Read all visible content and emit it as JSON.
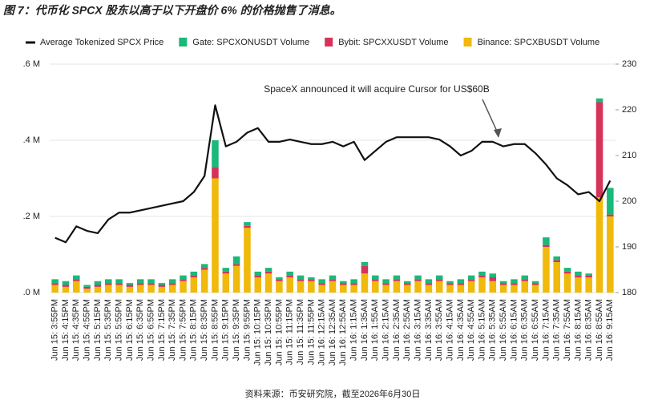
{
  "chart_data": {
    "type": "bar-line",
    "title": "图 7：代币化 SPCX 股东以高于以下开盘价 6% 的价格抛售了消息。",
    "source": "资料来源：币安研究院，截至2026年6月30日",
    "annotation": "SpaceX announced it will acquire Cursor for US$60B",
    "categories": [
      "Jun 15: 3:55PM",
      "Jun 15: 4:15PM",
      "Jun 15: 4:35PM",
      "Jun 15: 4:55PM",
      "Jun 15: 5:15PM",
      "Jun 15: 5:35PM",
      "Jun 15: 5:55PM",
      "Jun 15: 6:15PM",
      "Jun 15: 6:35PM",
      "Jun 15: 6:55PM",
      "Jun 15: 7:15PM",
      "Jun 15: 7:35PM",
      "Jun 15: 7:55PM",
      "Jun 15: 8:15PM",
      "Jun 15: 8:35PM",
      "Jun 15: 8:55PM",
      "Jun 15: 9:15PM",
      "Jun 15: 9:35PM",
      "Jun 15: 9:55PM",
      "Jun 15: 10:15PM",
      "Jun 15: 10:35PM",
      "Jun 15: 10:55PM",
      "Jun 15: 11:15PM",
      "Jun 15: 11:35PM",
      "Jun 15: 11:55PM",
      "Jun 16: 12:15AM",
      "Jun 16: 12:35AM",
      "Jun 16: 12:55AM",
      "Jun 16: 1:15AM",
      "Jun 16: 1:35AM",
      "Jun 16: 1:55AM",
      "Jun 16: 2:15AM",
      "Jun 16: 2:35AM",
      "Jun 16: 2:55AM",
      "Jun 16: 3:15AM",
      "Jun 16: 3:35AM",
      "Jun 16: 3:55AM",
      "Jun 16: 4:15AM",
      "Jun 16: 4:35AM",
      "Jun 16: 4:55AM",
      "Jun 16: 5:15AM",
      "Jun 16: 5:35AM",
      "Jun 16: 5:55AM",
      "Jun 16: 6:15AM",
      "Jun 16: 6:35AM",
      "Jun 16: 6:55AM",
      "Jun 16: 7:15AM",
      "Jun 16: 7:35AM",
      "Jun 16: 7:55AM",
      "Jun 16: 8:15AM",
      "Jun 16: 8:35AM",
      "Jun 16: 8:55AM",
      "Jun 16: 9:15AM"
    ],
    "series": [
      {
        "name": "Average Tokenized SPCX Price",
        "color": "#111111",
        "type": "line",
        "axis": "y2",
        "values": [
          192,
          191,
          194.5,
          193.5,
          193,
          196,
          197.5,
          197.5,
          198,
          198.5,
          199,
          199.5,
          200,
          202,
          205.5,
          221,
          212,
          213,
          215,
          216,
          213,
          213,
          213.5,
          213,
          212.5,
          212.5,
          213,
          212,
          213,
          209,
          211,
          213,
          214,
          214,
          214,
          214,
          213.5,
          212,
          210,
          211,
          213,
          213,
          212,
          212.5,
          212.5,
          210.5,
          208,
          205,
          203.5,
          201.5,
          202,
          200,
          204.5
        ]
      },
      {
        "name": "Gate: SPCXONUSDT Volume",
        "color": "#1bb87a",
        "type": "bar",
        "values": [
          0.01,
          0.01,
          0.01,
          0.005,
          0.01,
          0.01,
          0.01,
          0.005,
          0.01,
          0.01,
          0.005,
          0.01,
          0.01,
          0.01,
          0.01,
          0.07,
          0.01,
          0.02,
          0.01,
          0.01,
          0.01,
          0.005,
          0.01,
          0.01,
          0.005,
          0.01,
          0.01,
          0.005,
          0.01,
          0.01,
          0.01,
          0.01,
          0.01,
          0.005,
          0.01,
          0.01,
          0.01,
          0.005,
          0.01,
          0.01,
          0.01,
          0.01,
          0.005,
          0.01,
          0.01,
          0.005,
          0.02,
          0.01,
          0.01,
          0.01,
          0.005,
          0.01,
          0.07
        ]
      },
      {
        "name": "Bybit: SPCXXUSDT Volume",
        "color": "#d6335a",
        "type": "bar",
        "values": [
          0.005,
          0.005,
          0.005,
          0.005,
          0.005,
          0.005,
          0.005,
          0.005,
          0.005,
          0.005,
          0.005,
          0.005,
          0.005,
          0.005,
          0.005,
          0.03,
          0.005,
          0.005,
          0.005,
          0.005,
          0.005,
          0.005,
          0.005,
          0.005,
          0.005,
          0.005,
          0.005,
          0.005,
          0.005,
          0.02,
          0.005,
          0.005,
          0.005,
          0.005,
          0.005,
          0.005,
          0.005,
          0.005,
          0.005,
          0.005,
          0.005,
          0.01,
          0.005,
          0.005,
          0.005,
          0.005,
          0.005,
          0.005,
          0.005,
          0.005,
          0.005,
          0.25,
          0.005
        ]
      },
      {
        "name": "Binance: SPCXBUSDT Volume",
        "color": "#f0b90b",
        "type": "bar",
        "values": [
          0.02,
          0.015,
          0.03,
          0.01,
          0.015,
          0.02,
          0.02,
          0.015,
          0.02,
          0.02,
          0.015,
          0.02,
          0.03,
          0.04,
          0.06,
          0.3,
          0.05,
          0.07,
          0.17,
          0.04,
          0.05,
          0.03,
          0.04,
          0.03,
          0.03,
          0.02,
          0.03,
          0.02,
          0.02,
          0.05,
          0.03,
          0.02,
          0.03,
          0.02,
          0.03,
          0.02,
          0.03,
          0.02,
          0.02,
          0.03,
          0.04,
          0.03,
          0.02,
          0.02,
          0.03,
          0.02,
          0.12,
          0.08,
          0.05,
          0.04,
          0.04,
          0.25,
          0.2
        ]
      }
    ],
    "ylim": [
      0,
      0.6
    ],
    "yticks": [
      {
        "value": 0,
        "label": ".0 M"
      },
      {
        "value": 0.2,
        "label": ".2 M"
      },
      {
        "value": 0.4,
        "label": ".4 M"
      },
      {
        "value": 0.6,
        "label": ".6 M"
      }
    ],
    "y2lim": [
      180,
      230
    ],
    "y2ticks": [
      180,
      190,
      200,
      210,
      220,
      230
    ],
    "grid": true,
    "legend": "top"
  }
}
